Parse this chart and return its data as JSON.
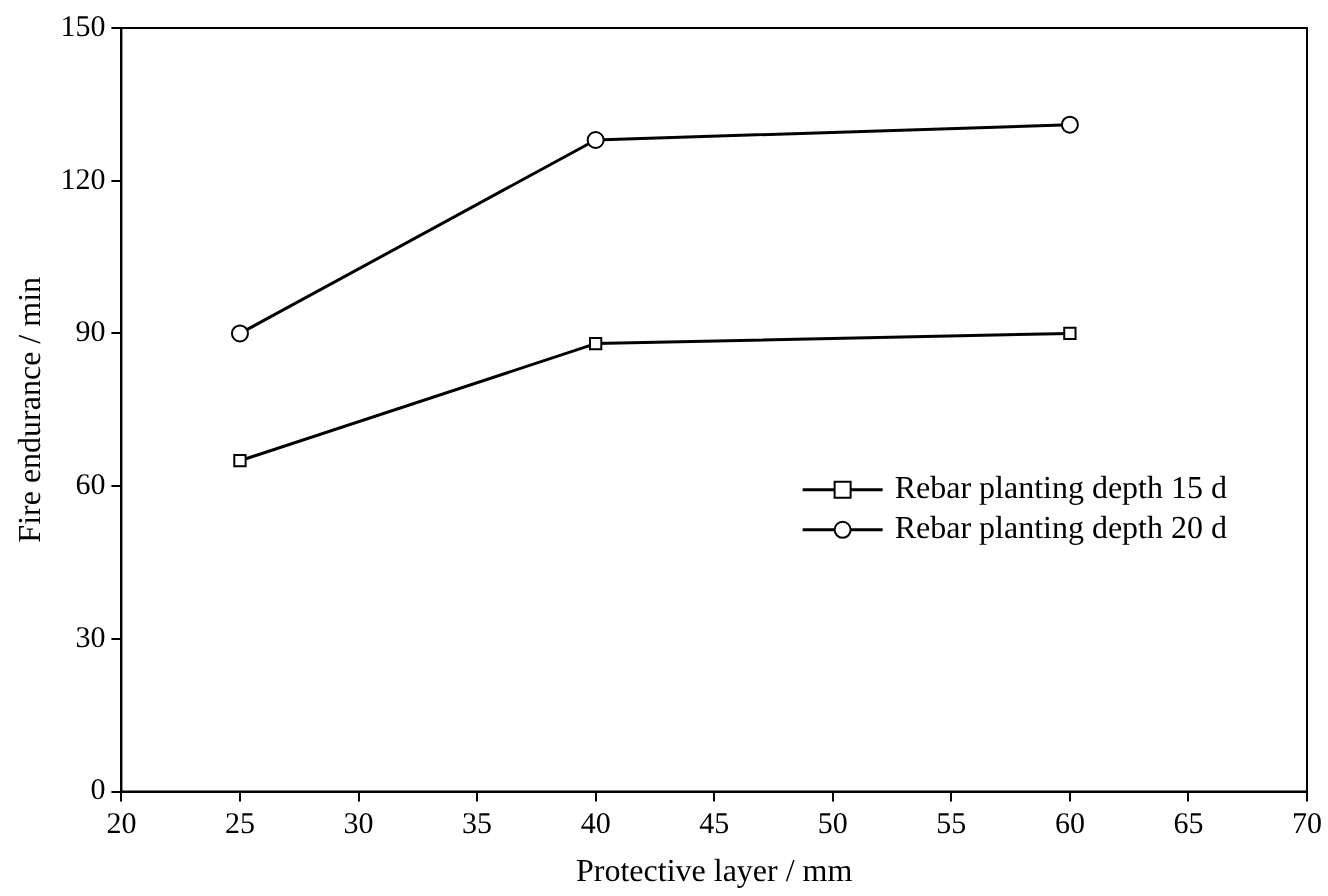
{
  "chart_data": {
    "type": "line",
    "xlabel": "Protective layer / mm",
    "ylabel": "Fire endurance / min",
    "x": [
      25,
      40,
      60
    ],
    "series": [
      {
        "name": "Rebar planting depth 15 d",
        "color": "#000000",
        "marker": "square",
        "values": [
          65,
          88,
          90
        ]
      },
      {
        "name": "Rebar planting depth 20 d",
        "color": "#000000",
        "marker": "circle",
        "values": [
          90,
          128,
          131
        ]
      }
    ],
    "xlim": [
      20,
      70
    ],
    "xticks": [
      20,
      25,
      30,
      35,
      40,
      45,
      50,
      55,
      60,
      65,
      70
    ],
    "ylim": [
      0,
      150
    ],
    "yticks": [
      0,
      30,
      60,
      90,
      120,
      150
    ],
    "grid": false,
    "legend": "center right",
    "line_style": "solid"
  }
}
